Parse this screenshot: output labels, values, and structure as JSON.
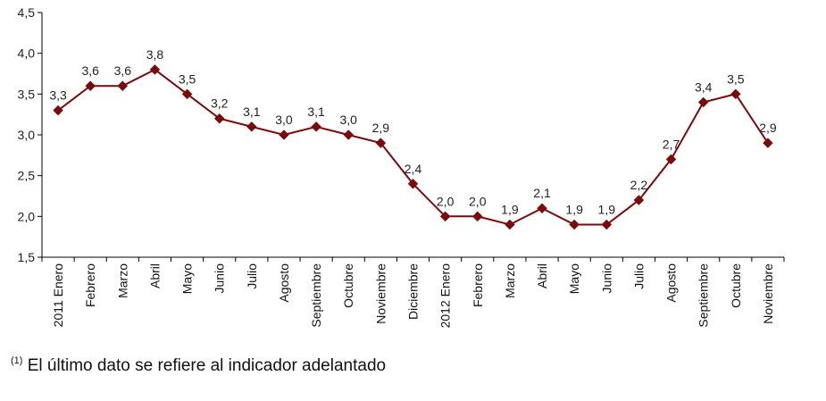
{
  "chart_data": {
    "type": "line",
    "title": "",
    "xlabel": "",
    "ylabel": "",
    "ylim": [
      1.5,
      4.5
    ],
    "ytick_step": 0.5,
    "yticks": [
      "1,5",
      "2,0",
      "2,5",
      "3,0",
      "3,5",
      "4,0",
      "4,5"
    ],
    "grid": false,
    "categories": [
      "2011 Enero",
      "Febrero",
      "Marzo",
      "Abril",
      "Mayo",
      "Junio",
      "Julio",
      "Agosto",
      "Septiembre",
      "Octubre",
      "Noviembre",
      "Diciembre",
      "2012 Enero",
      "Febrero",
      "Marzo",
      "Abril",
      "Mayo",
      "Junio",
      "Julio",
      "Agosto",
      "Septiembre",
      "Octubre",
      "Noviembre"
    ],
    "values": [
      3.3,
      3.6,
      3.6,
      3.8,
      3.5,
      3.2,
      3.1,
      3.0,
      3.1,
      3.0,
      2.9,
      2.4,
      2.0,
      2.0,
      1.9,
      2.1,
      1.9,
      1.9,
      2.2,
      2.7,
      3.4,
      3.5,
      2.9
    ],
    "data_labels": [
      "3,3",
      "3,6",
      "3,6",
      "3,8",
      "3,5",
      "3,2",
      "3,1",
      "3,0",
      "3,1",
      "3,0",
      "2,9",
      "2,4",
      "2,0",
      "2,0",
      "1,9",
      "2,1",
      "1,9",
      "1,9",
      "2,2",
      "2,7",
      "3,4",
      "3,5",
      "2,9"
    ],
    "line_color": "#7b0a0a",
    "marker": "diamond"
  },
  "footnote": {
    "marker": "(1)",
    "text": " El último dato se refiere al indicador adelantado"
  }
}
